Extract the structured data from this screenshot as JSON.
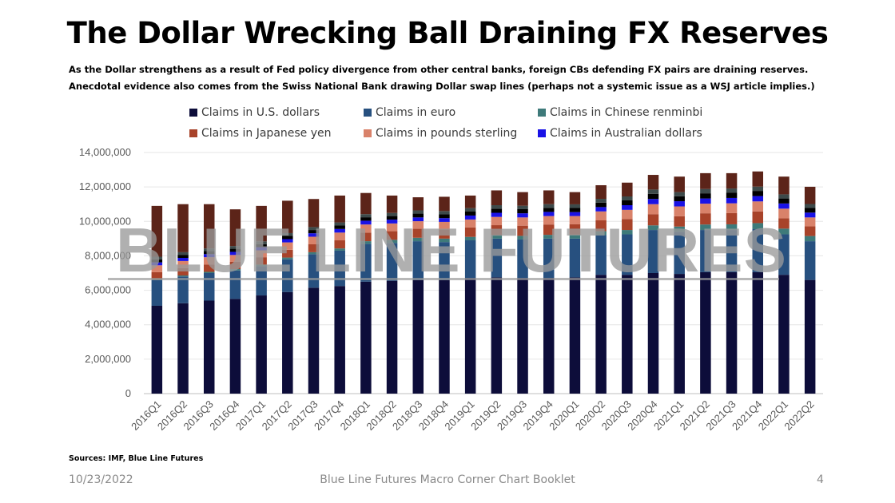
{
  "title": "The Dollar Wrecking Ball Draining FX Reserves",
  "subtitle": "As the Dollar strengthens as a result of Fed policy divergence from other central banks, foreign CBs defending FX pairs are draining reserves. Anecdotal evidence also comes from the Swiss National Bank drawing Dollar swap lines (perhaps not a systemic issue as a WSJ article implies.)",
  "watermark": "BLUE LINE FUTURES",
  "sources": "Sources: IMF, Blue Line Futures",
  "footer": {
    "date": "10/23/2022",
    "center": "Blue Line Futures Macro Corner Chart Booklet",
    "page": "4"
  },
  "chart_data": {
    "type": "bar",
    "stacked": true,
    "legend_position": "top",
    "grid": true,
    "ylim": [
      0,
      14000000
    ],
    "yticks": [
      "0",
      "2,000,000",
      "4,000,000",
      "6,000,000",
      "8,000,000",
      "10,000,000",
      "12,000,000",
      "14,000,000"
    ],
    "ytick_values": [
      0,
      2000000,
      4000000,
      6000000,
      8000000,
      10000000,
      12000000,
      14000000
    ],
    "categories": [
      "2016Q1",
      "2016Q2",
      "2016Q3",
      "2016Q4",
      "2017Q1",
      "2017Q2",
      "2017Q3",
      "2017Q4",
      "2018Q1",
      "2018Q2",
      "2018Q3",
      "2018Q4",
      "2019Q1",
      "2019Q2",
      "2019Q3",
      "2019Q4",
      "2020Q1",
      "2020Q2",
      "2020Q3",
      "2020Q4",
      "2021Q1",
      "2021Q2",
      "2021Q3",
      "2021Q4",
      "2022Q1",
      "2022Q2"
    ],
    "series": [
      {
        "name": "Claims in U.S. dollars",
        "color": "#0d0d3a",
        "values": [
          5100000,
          5250000,
          5400000,
          5500000,
          5700000,
          5900000,
          6150000,
          6250000,
          6500000,
          6550000,
          6600000,
          6600000,
          6700000,
          6750000,
          6700000,
          6700000,
          6750000,
          6900000,
          6900000,
          7000000,
          6950000,
          7050000,
          7050000,
          7050000,
          6900000,
          6600000
        ]
      },
      {
        "name": "Claims in euro",
        "color": "#27507f",
        "values": [
          1500000,
          1550000,
          1600000,
          1650000,
          1700000,
          1900000,
          1950000,
          2050000,
          2200000,
          2200000,
          2250000,
          2200000,
          2200000,
          2250000,
          2250000,
          2300000,
          2250000,
          2300000,
          2350000,
          2500000,
          2450000,
          2450000,
          2450000,
          2500000,
          2350000,
          2250000
        ]
      },
      {
        "name": "Claims in Chinese renminbi",
        "color": "#3e7a7a",
        "values": [
          50000,
          60000,
          70000,
          80000,
          90000,
          100000,
          110000,
          130000,
          150000,
          180000,
          200000,
          200000,
          200000,
          210000,
          210000,
          220000,
          230000,
          230000,
          250000,
          270000,
          300000,
          320000,
          330000,
          350000,
          330000,
          300000
        ]
      },
      {
        "name": "Claims in Japanese yen",
        "color": "#a8432a",
        "values": [
          400000,
          420000,
          430000,
          420000,
          430000,
          450000,
          460000,
          470000,
          500000,
          500000,
          520000,
          530000,
          550000,
          570000,
          590000,
          600000,
          600000,
          630000,
          640000,
          650000,
          600000,
          650000,
          650000,
          680000,
          600000,
          560000
        ]
      },
      {
        "name": "Claims in pounds sterling",
        "color": "#d9826a",
        "values": [
          400000,
          420000,
          420000,
          400000,
          400000,
          430000,
          440000,
          450000,
          470000,
          450000,
          440000,
          440000,
          460000,
          480000,
          480000,
          490000,
          480000,
          520000,
          530000,
          580000,
          570000,
          560000,
          570000,
          580000,
          560000,
          520000
        ]
      },
      {
        "name": "Claims in Australian dollars",
        "color": "#1a12e6",
        "values": [
          170000,
          180000,
          180000,
          180000,
          180000,
          190000,
          200000,
          210000,
          220000,
          220000,
          220000,
          220000,
          230000,
          240000,
          240000,
          240000,
          230000,
          250000,
          270000,
          300000,
          300000,
          300000,
          310000,
          310000,
          300000,
          280000
        ]
      },
      {
        "name": "",
        "color": "#000000",
        "values": [
          180000,
          180000,
          180000,
          180000,
          180000,
          190000,
          190000,
          200000,
          200000,
          210000,
          220000,
          220000,
          230000,
          240000,
          240000,
          240000,
          240000,
          260000,
          280000,
          300000,
          290000,
          300000,
          300000,
          300000,
          290000,
          270000
        ]
      },
      {
        "name": "",
        "color": "#3d4a4a",
        "values": [
          150000,
          150000,
          150000,
          160000,
          160000,
          160000,
          170000,
          180000,
          180000,
          180000,
          190000,
          190000,
          200000,
          200000,
          200000,
          210000,
          210000,
          220000,
          230000,
          250000,
          240000,
          250000,
          250000,
          250000,
          240000,
          230000
        ]
      },
      {
        "name": "",
        "color": "#5c2419",
        "values": [
          2950000,
          2790000,
          2570000,
          2130000,
          2060000,
          1880000,
          1630000,
          1560000,
          1230000,
          1010000,
          760000,
          830000,
          730000,
          860000,
          790000,
          800000,
          710000,
          790000,
          800000,
          850000,
          900000,
          920000,
          890000,
          880000,
          1030000,
          1000000
        ]
      }
    ]
  }
}
